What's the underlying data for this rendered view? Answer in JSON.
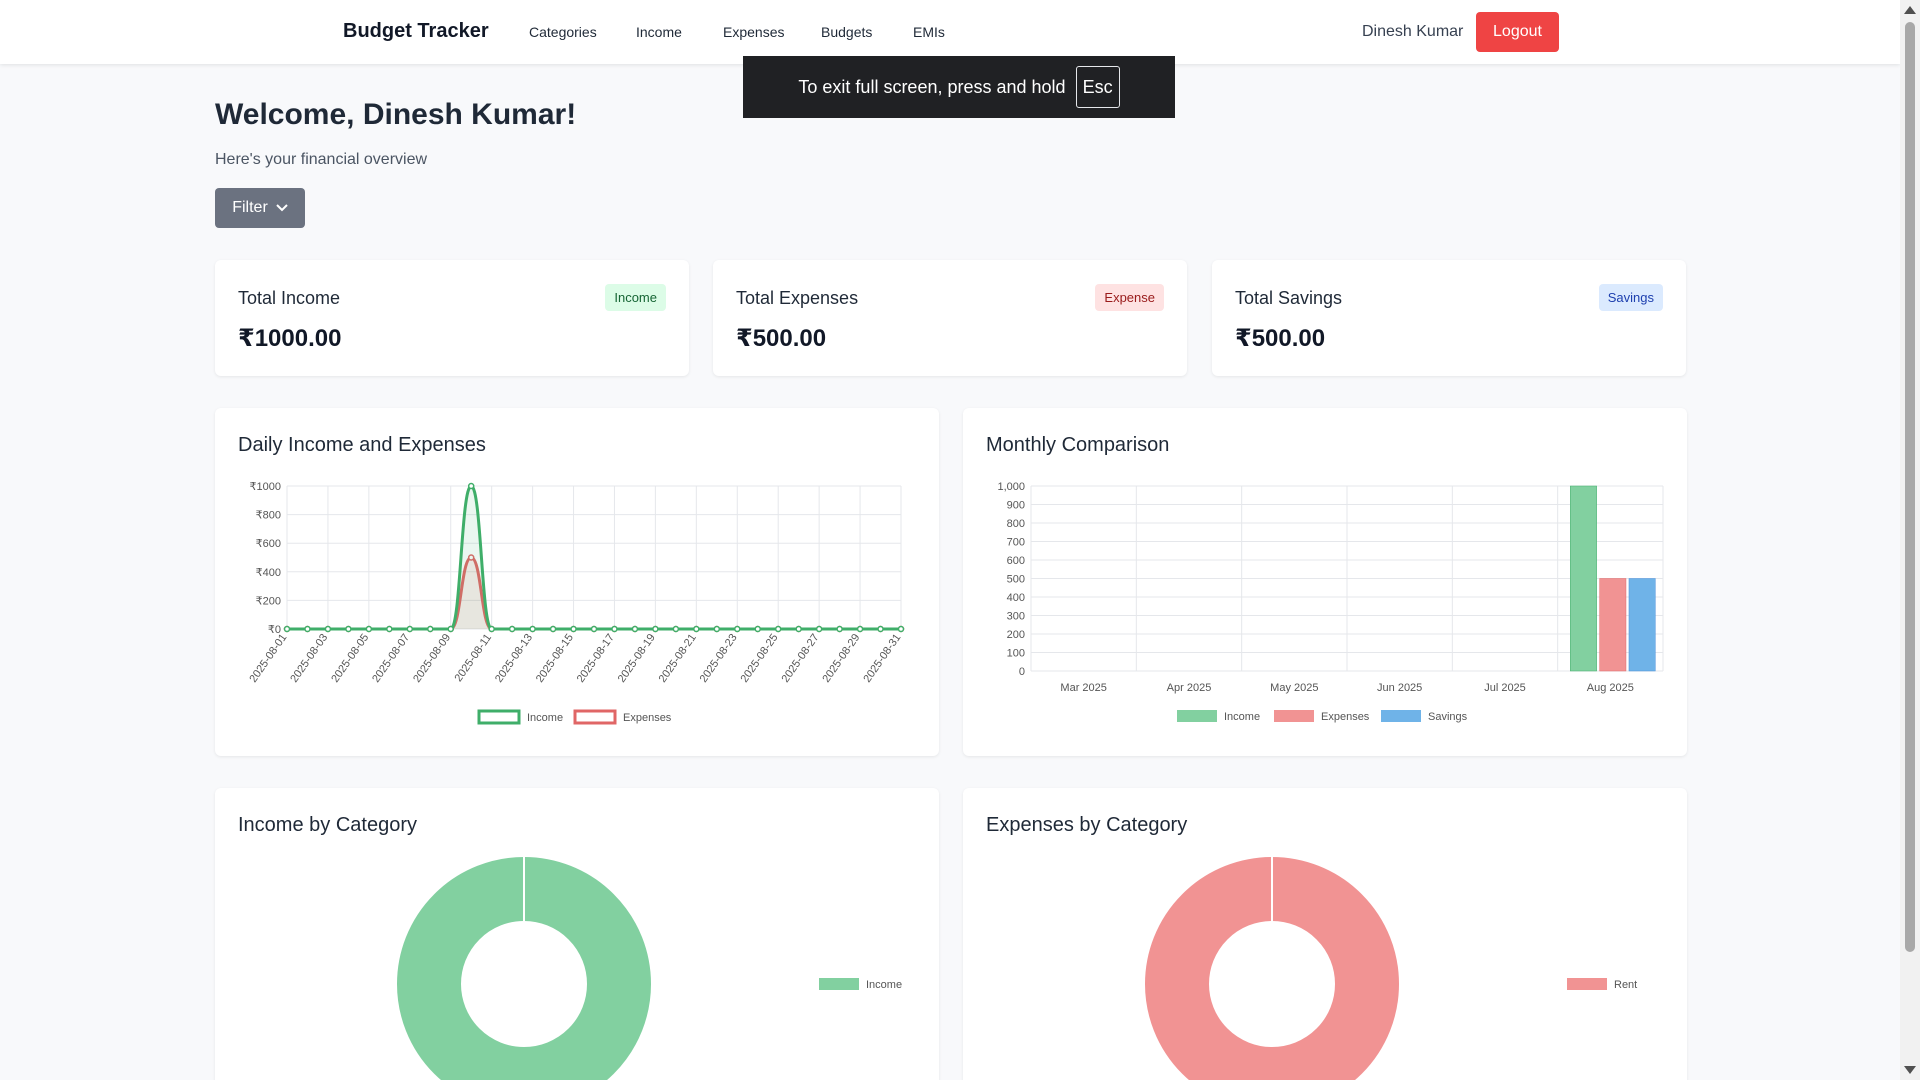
{
  "navbar": {
    "brand": "Budget Tracker",
    "links": [
      "Categories",
      "Income",
      "Expenses",
      "Budgets",
      "EMIs"
    ],
    "user_name": "Dinesh Kumar",
    "logout_label": "Logout"
  },
  "fullscreen_toast": {
    "text": "To exit full screen, press and hold",
    "key": "Esc"
  },
  "header": {
    "welcome": "Welcome, Dinesh Kumar!",
    "subtitle": "Here's your financial overview",
    "filter_label": "Filter"
  },
  "stats": [
    {
      "title": "Total Income",
      "badge": "Income",
      "value": "₹1000.00"
    },
    {
      "title": "Total Expenses",
      "badge": "Expense",
      "value": "₹500.00"
    },
    {
      "title": "Total Savings",
      "badge": "Savings",
      "value": "₹500.00"
    }
  ],
  "colors": {
    "income": "#3fae69",
    "expense": "#e06666",
    "savings": "#6fb3e8",
    "income_fill": "#82d0a0",
    "expense_fill": "#f19393",
    "logout": "#ef4444"
  },
  "chart_data": [
    {
      "type": "line",
      "title": "Daily Income and Expenses",
      "x": [
        "2025-08-01",
        "2025-08-02",
        "2025-08-03",
        "2025-08-04",
        "2025-08-05",
        "2025-08-06",
        "2025-08-07",
        "2025-08-08",
        "2025-08-09",
        "2025-08-10",
        "2025-08-11",
        "2025-08-12",
        "2025-08-13",
        "2025-08-14",
        "2025-08-15",
        "2025-08-16",
        "2025-08-17",
        "2025-08-18",
        "2025-08-19",
        "2025-08-20",
        "2025-08-21",
        "2025-08-22",
        "2025-08-23",
        "2025-08-24",
        "2025-08-25",
        "2025-08-26",
        "2025-08-27",
        "2025-08-28",
        "2025-08-29",
        "2025-08-30",
        "2025-08-31"
      ],
      "x_tick_labels": [
        "2025-08-01",
        "2025-08-03",
        "2025-08-05",
        "2025-08-07",
        "2025-08-09",
        "2025-08-11",
        "2025-08-13",
        "2025-08-15",
        "2025-08-17",
        "2025-08-19",
        "2025-08-21",
        "2025-08-23",
        "2025-08-25",
        "2025-08-27",
        "2025-08-29",
        "2025-08-31"
      ],
      "series": [
        {
          "name": "Income",
          "values": [
            0,
            0,
            0,
            0,
            0,
            0,
            0,
            0,
            0,
            1000,
            0,
            0,
            0,
            0,
            0,
            0,
            0,
            0,
            0,
            0,
            0,
            0,
            0,
            0,
            0,
            0,
            0,
            0,
            0,
            0,
            0
          ]
        },
        {
          "name": "Expenses",
          "values": [
            0,
            0,
            0,
            0,
            0,
            0,
            0,
            0,
            0,
            500,
            0,
            0,
            0,
            0,
            0,
            0,
            0,
            0,
            0,
            0,
            0,
            0,
            0,
            0,
            0,
            0,
            0,
            0,
            0,
            0,
            0
          ]
        }
      ],
      "y_ticks": [
        "₹0",
        "₹200",
        "₹400",
        "₹600",
        "₹800",
        "₹1000"
      ],
      "ylim": [
        0,
        1000
      ],
      "grid": true,
      "legend": "bottom"
    },
    {
      "type": "bar",
      "title": "Monthly Comparison",
      "categories": [
        "Mar 2025",
        "Apr 2025",
        "May 2025",
        "Jun 2025",
        "Jul 2025",
        "Aug 2025"
      ],
      "series": [
        {
          "name": "Income",
          "values": [
            0,
            0,
            0,
            0,
            0,
            1000
          ]
        },
        {
          "name": "Expenses",
          "values": [
            0,
            0,
            0,
            0,
            0,
            500
          ]
        },
        {
          "name": "Savings",
          "values": [
            0,
            0,
            0,
            0,
            0,
            500
          ]
        }
      ],
      "y_ticks": [
        "0",
        "100",
        "200",
        "300",
        "400",
        "500",
        "600",
        "700",
        "800",
        "900",
        "1,000"
      ],
      "ylim": [
        0,
        1000
      ],
      "grid": true,
      "legend": "bottom"
    },
    {
      "type": "pie",
      "title": "Income by Category",
      "categories": [
        "Income"
      ],
      "values": [
        1000
      ],
      "legend": "right"
    },
    {
      "type": "pie",
      "title": "Expenses by Category",
      "categories": [
        "Rent"
      ],
      "values": [
        500
      ],
      "legend": "right"
    }
  ]
}
